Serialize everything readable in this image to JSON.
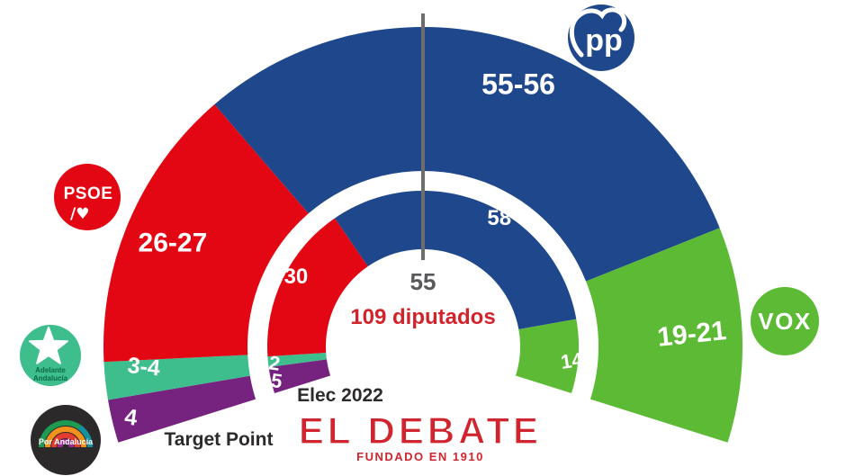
{
  "chart_data": {
    "type": "hemicycle-donut",
    "description": "Andalusia parliament seat projection, two concentric half-donut rings",
    "total_seats": 109,
    "center_label": "109 diputados",
    "majority": {
      "label": "55",
      "seats": 55,
      "line_color": "#6d6d6d",
      "label_color": "#58595b"
    },
    "rings": [
      {
        "id": "inner",
        "label": "Elec 2022",
        "total": 109,
        "segments": [
          {
            "party": "Por Andalucía",
            "label": "5",
            "value": 5,
            "color": "#76227f"
          },
          {
            "party": "Adelante Andalucía",
            "label": "2",
            "value": 2,
            "color": "#3ebd8d"
          },
          {
            "party": "PSOE",
            "label": "30",
            "value": 30,
            "color": "#e30613"
          },
          {
            "party": "PP",
            "label": "58",
            "value": 58,
            "color": "#1f478c"
          },
          {
            "party": "VOX",
            "label": "14",
            "value": 14,
            "color": "#5cba35"
          }
        ]
      },
      {
        "id": "outer",
        "label": "Target Point",
        "total": 109.5,
        "segments": [
          {
            "party": "Por Andalucía",
            "label": "4",
            "value": 4,
            "color": "#76227f"
          },
          {
            "party": "Adelante Andalucía",
            "label": "3-4",
            "value": 3.5,
            "color": "#3ebd8d"
          },
          {
            "party": "PSOE",
            "label": "26-27",
            "value": 26.5,
            "color": "#e30613"
          },
          {
            "party": "PP",
            "label": "55-56",
            "value": 55.5,
            "color": "#1f478c"
          },
          {
            "party": "VOX",
            "label": "19-21",
            "value": 20,
            "color": "#5cba35"
          }
        ]
      }
    ],
    "center_label_color": "#d2232a",
    "caption_color": "#2d2a2b"
  },
  "logos": {
    "psoe": {
      "line1": "PSOE",
      "line2": "/♥",
      "color": "#e30613"
    },
    "pp": {
      "text": "pp",
      "color": "#1f478c"
    },
    "vox": {
      "text": "VOX",
      "color": "#5cba35"
    },
    "adelante": {
      "line1": "Adelante",
      "line2": "Andalucía",
      "color": "#3ebd8d",
      "text_color": "#0a6b45"
    },
    "por_andalucia": {
      "text": "Por Andalucía",
      "color": "#2c292a",
      "arc_colors": {
        "green": "#1e9b52",
        "teal": "#14909e",
        "orange": "#f2921d",
        "red": "#e63b2f",
        "purple": "#982d90"
      }
    }
  },
  "branding": {
    "name": "EL DEBATE",
    "tagline": "FUNDADO EN 1910",
    "color": "#d0242e"
  }
}
